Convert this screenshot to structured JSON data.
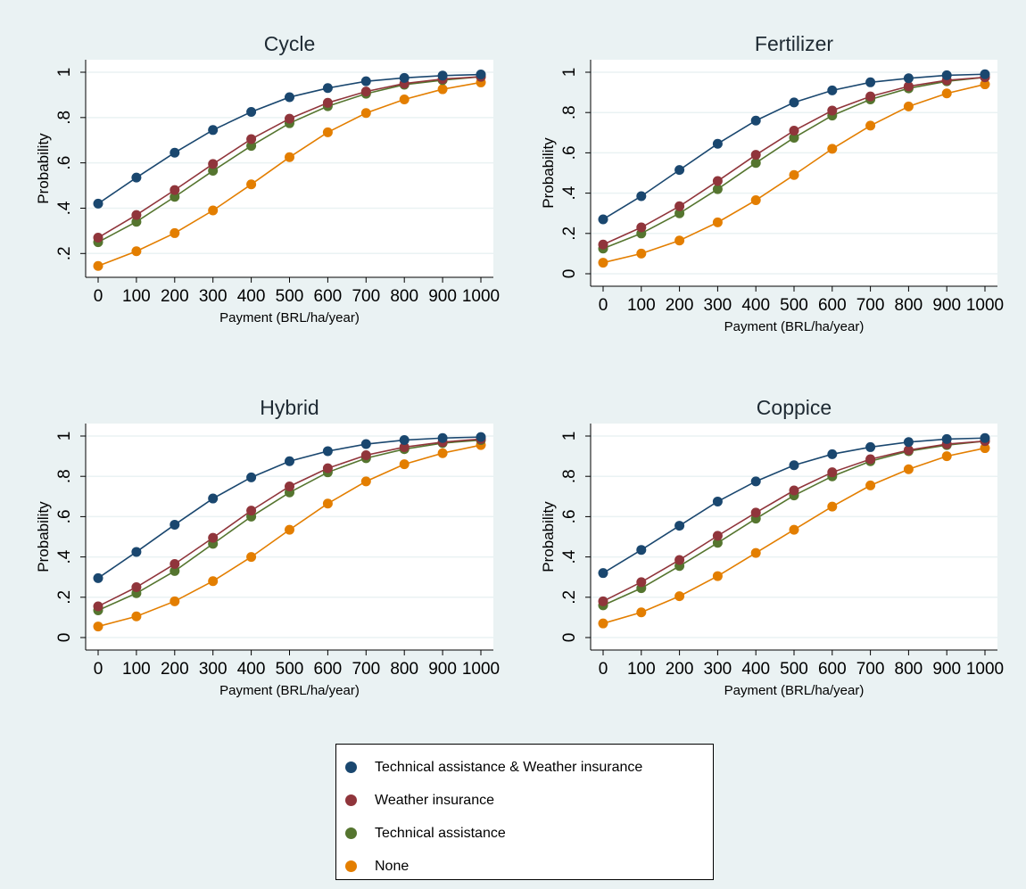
{
  "chart_data": [
    {
      "type": "line",
      "title": "Cycle",
      "xlabel": "Payment (BRL/ha/year)",
      "ylabel": "Probability",
      "x": [
        0,
        100,
        200,
        300,
        400,
        500,
        600,
        700,
        800,
        900,
        1000
      ],
      "xticks": [
        "0",
        "100",
        "200",
        "300",
        "400",
        "500",
        "600",
        "700",
        "800",
        "900",
        "1000"
      ],
      "yticks": [
        0.2,
        0.4,
        0.6,
        0.8,
        1
      ],
      "yticklabels": [
        ".2",
        ".4",
        ".6",
        ".8",
        "1"
      ],
      "ylim": [
        0.15,
        1.0
      ],
      "grid": true,
      "series": [
        {
          "name": "Technical assistance & Weather insurance",
          "values": [
            0.42,
            0.535,
            0.645,
            0.745,
            0.825,
            0.89,
            0.93,
            0.96,
            0.975,
            0.985,
            0.99
          ]
        },
        {
          "name": "Weather insurance",
          "values": [
            0.27,
            0.37,
            0.48,
            0.595,
            0.705,
            0.795,
            0.865,
            0.915,
            0.95,
            0.97,
            0.98
          ]
        },
        {
          "name": "Technical assistance",
          "values": [
            0.25,
            0.34,
            0.45,
            0.565,
            0.675,
            0.775,
            0.85,
            0.905,
            0.945,
            0.965,
            0.98
          ]
        },
        {
          "name": "None",
          "values": [
            0.145,
            0.21,
            0.29,
            0.39,
            0.505,
            0.625,
            0.735,
            0.82,
            0.88,
            0.925,
            0.955
          ]
        }
      ]
    },
    {
      "type": "line",
      "title": "Fertilizer",
      "xlabel": "Payment (BRL/ha/year)",
      "ylabel": "Probability",
      "x": [
        0,
        100,
        200,
        300,
        400,
        500,
        600,
        700,
        800,
        900,
        1000
      ],
      "xticks": [
        "0",
        "100",
        "200",
        "300",
        "400",
        "500",
        "600",
        "700",
        "800",
        "900",
        "1000"
      ],
      "yticks": [
        0,
        0.2,
        0.4,
        0.6,
        0.8,
        1
      ],
      "yticklabels": [
        "0",
        ".2",
        ".4",
        ".6",
        ".8",
        "1"
      ],
      "ylim": [
        0,
        1.0
      ],
      "grid": true,
      "series": [
        {
          "name": "Technical assistance & Weather insurance",
          "values": [
            0.27,
            0.385,
            0.515,
            0.645,
            0.76,
            0.85,
            0.91,
            0.95,
            0.97,
            0.985,
            0.99
          ]
        },
        {
          "name": "Weather insurance",
          "values": [
            0.145,
            0.23,
            0.335,
            0.46,
            0.59,
            0.71,
            0.81,
            0.88,
            0.93,
            0.96,
            0.975
          ]
        },
        {
          "name": "Technical assistance",
          "values": [
            0.125,
            0.2,
            0.3,
            0.42,
            0.55,
            0.675,
            0.785,
            0.865,
            0.92,
            0.955,
            0.975
          ]
        },
        {
          "name": "None",
          "values": [
            0.055,
            0.1,
            0.165,
            0.255,
            0.365,
            0.49,
            0.62,
            0.735,
            0.83,
            0.895,
            0.94
          ]
        }
      ]
    },
    {
      "type": "line",
      "title": "Hybrid",
      "xlabel": "Payment (BRL/ha/year)",
      "ylabel": "Probability",
      "x": [
        0,
        100,
        200,
        300,
        400,
        500,
        600,
        700,
        800,
        900,
        1000
      ],
      "xticks": [
        "0",
        "100",
        "200",
        "300",
        "400",
        "500",
        "600",
        "700",
        "800",
        "900",
        "1000"
      ],
      "yticks": [
        0,
        0.2,
        0.4,
        0.6,
        0.8,
        1
      ],
      "yticklabels": [
        "0",
        ".2",
        ".4",
        ".6",
        ".8",
        "1"
      ],
      "ylim": [
        0,
        1.0
      ],
      "grid": true,
      "series": [
        {
          "name": "Technical assistance & Weather insurance",
          "values": [
            0.295,
            0.425,
            0.56,
            0.69,
            0.795,
            0.875,
            0.925,
            0.96,
            0.98,
            0.99,
            0.995
          ]
        },
        {
          "name": "Weather insurance",
          "values": [
            0.155,
            0.25,
            0.365,
            0.495,
            0.63,
            0.75,
            0.84,
            0.905,
            0.945,
            0.97,
            0.985
          ]
        },
        {
          "name": "Technical assistance",
          "values": [
            0.135,
            0.22,
            0.33,
            0.465,
            0.6,
            0.72,
            0.82,
            0.89,
            0.935,
            0.965,
            0.98
          ]
        },
        {
          "name": "None",
          "values": [
            0.055,
            0.105,
            0.18,
            0.28,
            0.4,
            0.535,
            0.665,
            0.775,
            0.86,
            0.915,
            0.955
          ]
        }
      ]
    },
    {
      "type": "line",
      "title": "Coppice",
      "xlabel": "Payment (BRL/ha/year)",
      "ylabel": "Probability",
      "x": [
        0,
        100,
        200,
        300,
        400,
        500,
        600,
        700,
        800,
        900,
        1000
      ],
      "xticks": [
        "0",
        "100",
        "200",
        "300",
        "400",
        "500",
        "600",
        "700",
        "800",
        "900",
        "1000"
      ],
      "yticks": [
        0,
        0.2,
        0.4,
        0.6,
        0.8,
        1
      ],
      "yticklabels": [
        "0",
        ".2",
        ".4",
        ".6",
        ".8",
        "1"
      ],
      "ylim": [
        0,
        1.0
      ],
      "grid": true,
      "series": [
        {
          "name": "Technical assistance & Weather insurance",
          "values": [
            0.32,
            0.435,
            0.555,
            0.675,
            0.775,
            0.855,
            0.91,
            0.945,
            0.97,
            0.985,
            0.99
          ]
        },
        {
          "name": "Weather insurance",
          "values": [
            0.18,
            0.275,
            0.385,
            0.505,
            0.62,
            0.73,
            0.82,
            0.885,
            0.93,
            0.96,
            0.975
          ]
        },
        {
          "name": "Technical assistance",
          "values": [
            0.16,
            0.245,
            0.355,
            0.47,
            0.59,
            0.705,
            0.8,
            0.875,
            0.925,
            0.955,
            0.975
          ]
        },
        {
          "name": "None",
          "values": [
            0.07,
            0.125,
            0.205,
            0.305,
            0.42,
            0.535,
            0.65,
            0.755,
            0.835,
            0.9,
            0.94
          ]
        }
      ]
    }
  ],
  "legend": {
    "placement": "bottom-center",
    "items": [
      {
        "label": "Technical assistance & Weather insurance",
        "color": "#1a476f"
      },
      {
        "label": "Weather insurance",
        "color": "#90353b"
      },
      {
        "label": "Technical assistance",
        "color": "#55752f"
      },
      {
        "label": "None",
        "color": "#e37e00"
      }
    ]
  },
  "colors": {
    "background": "#eaf2f3",
    "plot_area": "#ffffff",
    "grid": "#eaf2f3",
    "series": [
      "#1a476f",
      "#90353b",
      "#55752f",
      "#e37e00"
    ]
  }
}
